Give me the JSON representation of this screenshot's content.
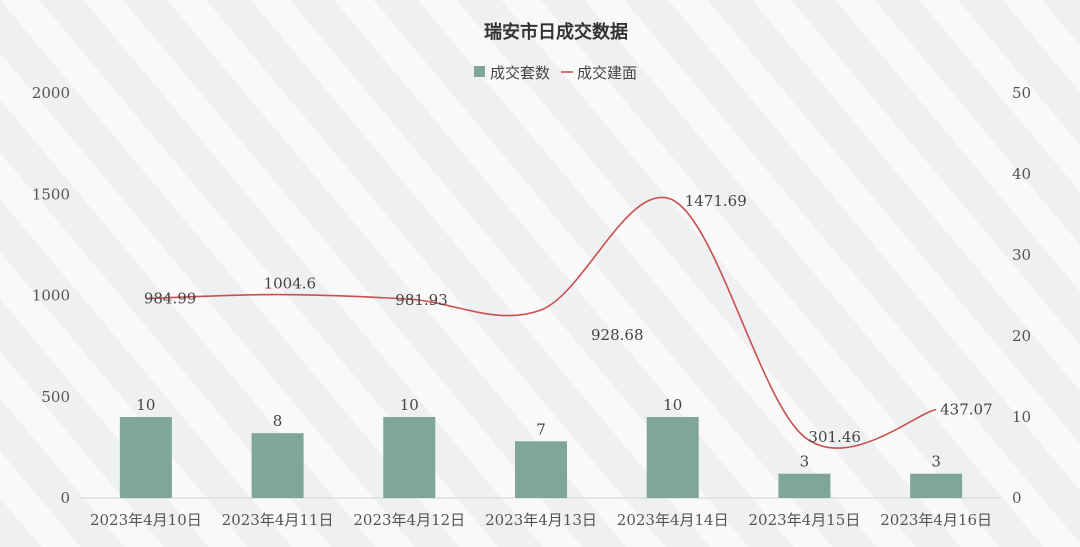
{
  "chart_data": {
    "type": "bar",
    "title": "瑞安市日成交数据",
    "categories": [
      "2023年4月10日",
      "2023年4月11日",
      "2023年4月12日",
      "2023年4月13日",
      "2023年4月14日",
      "2023年4月15日",
      "2023年4月16日"
    ],
    "series": [
      {
        "name": "成交套数",
        "type": "bar",
        "axis": "right",
        "values": [
          10,
          8,
          10,
          7,
          10,
          3,
          3
        ],
        "labels": [
          "10",
          "8",
          "10",
          "7",
          "10",
          "3",
          "3"
        ],
        "color": "#7fa699"
      },
      {
        "name": "成交建面",
        "type": "line",
        "smooth": true,
        "axis": "left",
        "values": [
          984.99,
          1004.6,
          981.93,
          928.68,
          1471.69,
          301.46,
          437.07
        ],
        "labels": [
          "984.99",
          "1004.6",
          "981.93",
          "928.68",
          "1471.69",
          "301.46",
          "437.07"
        ],
        "color": "#c9504f"
      }
    ],
    "y_left": {
      "min": 0,
      "max": 2000,
      "ticks": [
        "0",
        "500",
        "1000",
        "1500",
        "2000"
      ]
    },
    "y_right": {
      "min": 0,
      "max": 50,
      "ticks": [
        "0",
        "10",
        "20",
        "30",
        "40",
        "50"
      ]
    },
    "legend": "top-center",
    "grid": false
  }
}
